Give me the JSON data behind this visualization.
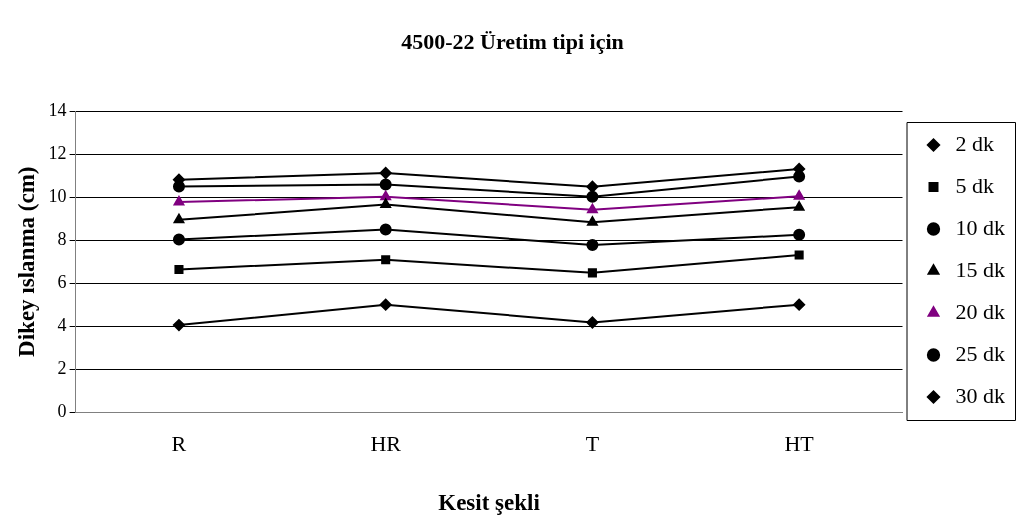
{
  "chart_data": {
    "type": "line",
    "title": "4500-22 Üretim tipi için",
    "xlabel": "Kesit şekli",
    "ylabel": "Dikey ıslanma (cm)",
    "categories": [
      "R",
      "HR",
      "T",
      "HT"
    ],
    "series": [
      {
        "name": "2 dk",
        "color": "#000000",
        "marker": "diamond",
        "values": [
          4.05,
          5.0,
          4.17,
          5.0
        ]
      },
      {
        "name": "5 dk",
        "color": "#000000",
        "marker": "square",
        "values": [
          6.64,
          7.09,
          6.48,
          7.31
        ]
      },
      {
        "name": "10 dk",
        "color": "#000000",
        "marker": "circle",
        "values": [
          8.03,
          8.5,
          7.78,
          8.25
        ]
      },
      {
        "name": "15 dk",
        "color": "#000000",
        "marker": "triangle",
        "values": [
          8.95,
          9.66,
          8.84,
          9.54
        ]
      },
      {
        "name": "20 dk",
        "color": "#800080",
        "marker": "triangle",
        "values": [
          9.78,
          10.02,
          9.42,
          10.05
        ]
      },
      {
        "name": "25 dk",
        "color": "#000000",
        "marker": "circle",
        "values": [
          10.5,
          10.6,
          10.03,
          10.97
        ]
      },
      {
        "name": "30 dk",
        "color": "#000000",
        "marker": "diamond",
        "values": [
          10.82,
          11.13,
          10.49,
          11.32
        ]
      }
    ],
    "ylim": [
      0,
      14
    ],
    "yticks": [
      0,
      2,
      4,
      6,
      8,
      10,
      12,
      14
    ],
    "grid": "y",
    "legend": "right",
    "line_style": "solid"
  }
}
